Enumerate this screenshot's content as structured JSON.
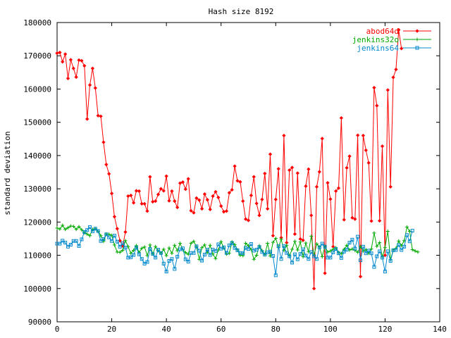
{
  "chart_data": {
    "type": "line",
    "title": "Hash size 8192",
    "xlabel": "",
    "ylabel": "standard deviation",
    "xlim": [
      0,
      140
    ],
    "ylim": [
      90000,
      180000
    ],
    "x_ticks": [
      "0",
      "20",
      "40",
      "60",
      "80",
      "100",
      "120",
      "140"
    ],
    "y_ticks": [
      "90000",
      "100000",
      "110000",
      "120000",
      "130000",
      "140000",
      "150000",
      "160000",
      "170000",
      "180000"
    ],
    "x_tick_values": [
      0,
      20,
      40,
      60,
      80,
      100,
      120,
      140
    ],
    "y_tick_values": [
      90000,
      100000,
      110000,
      120000,
      130000,
      140000,
      150000,
      160000,
      170000,
      180000
    ],
    "grid": false,
    "legend_position": "top-right",
    "series": [
      {
        "name": "abod64d",
        "color": "#ff0000",
        "marker": "diamond",
        "values": [
          170800,
          171000,
          168200,
          170500,
          163200,
          168800,
          166200,
          163600,
          168700,
          168500,
          167000,
          151000,
          161200,
          166200,
          160300,
          152000,
          151800,
          144000,
          137300,
          134500,
          128600,
          121600,
          118000,
          114400,
          112800,
          117000,
          127800,
          128000,
          125800,
          129400,
          129300,
          125500,
          125500,
          123300,
          133600,
          126100,
          126300,
          128300,
          130000,
          129400,
          133800,
          126400,
          129300,
          126300,
          124400,
          131700,
          132000,
          129900,
          133000,
          123400,
          122800,
          127200,
          126600,
          124000,
          128400,
          126700,
          123800,
          127800,
          129100,
          127400,
          124800,
          123100,
          123300,
          128800,
          129700,
          136800,
          132400,
          132100,
          126300,
          120900,
          120500,
          128000,
          133600,
          125600,
          122000,
          126800,
          134600,
          124000,
          140400,
          115900,
          126800,
          136000,
          115300,
          146000,
          113800,
          135600,
          136400,
          116400,
          134700,
          114900,
          114500,
          130800,
          135900,
          122000,
          100000,
          130600,
          135100,
          145100,
          104600,
          131800,
          126900,
          112600,
          129300,
          130200,
          151300,
          120700,
          136300,
          139800,
          121300,
          120900,
          146100,
          103600,
          146000,
          141600,
          137800,
          120300,
          160400,
          155000,
          120400,
          142800,
          110000,
          159700,
          130600,
          163500,
          165900,
          177800,
          172200
        ],
        "x_start": 0
      },
      {
        "name": "jenkins32o",
        "color": "#00aa00",
        "marker": "plus",
        "values": [
          118200,
          117900,
          119000,
          117800,
          118300,
          118800,
          118700,
          117800,
          118600,
          117700,
          116800,
          116400,
          115900,
          117800,
          118000,
          117200,
          115900,
          114200,
          116400,
          116300,
          116000,
          113100,
          111000,
          110900,
          111500,
          114400,
          112600,
          110600,
          111500,
          112900,
          110800,
          112100,
          112500,
          109900,
          113100,
          110400,
          112600,
          111400,
          110600,
          111800,
          109900,
          112200,
          110600,
          113000,
          111400,
          113600,
          111700,
          110800,
          110300,
          113600,
          114200,
          112600,
          108800,
          112300,
          113100,
          110800,
          113000,
          110400,
          109000,
          111600,
          114100,
          112200,
          110400,
          110600,
          114000,
          113200,
          111600,
          110000,
          109900,
          113600,
          112900,
          111800,
          108800,
          110000,
          112900,
          111400,
          110200,
          113600,
          109800,
          113900,
          115100,
          112300,
          114800,
          111500,
          113000,
          109800,
          111800,
          114200,
          111600,
          114000,
          109600,
          113700,
          111100,
          115700,
          110000,
          113400,
          112500,
          109600,
          112700,
          111000,
          111300,
          111800,
          112300,
          110800,
          110500,
          111800,
          113000,
          111600,
          111900,
          111500,
          110900,
          112600,
          111300,
          111700,
          110600,
          111900,
          116700,
          112700,
          113800,
          109500,
          112300,
          117200,
          108700,
          111600,
          112100,
          114300,
          112900,
          114400,
          118500,
          117200,
          111700,
          111300,
          111000
        ],
        "x_start": 0
      },
      {
        "name": "jenkins64",
        "color": "#0088cc",
        "marker": "square",
        "values": [
          113500,
          113500,
          114400,
          113800,
          112600,
          113200,
          114300,
          114300,
          112800,
          114800,
          117000,
          117600,
          118500,
          117200,
          118000,
          117300,
          114300,
          114900,
          116300,
          115400,
          114300,
          115900,
          114100,
          112600,
          113600,
          112300,
          109300,
          109400,
          110100,
          112300,
          110300,
          108900,
          107500,
          108000,
          111900,
          110400,
          109300,
          111700,
          110700,
          107500,
          105100,
          108300,
          108900,
          105900,
          109600,
          111800,
          112100,
          108800,
          108100,
          110700,
          110700,
          112700,
          111400,
          108400,
          110200,
          111700,
          110100,
          111700,
          111300,
          113300,
          112000,
          112400,
          110700,
          113000,
          113700,
          112200,
          111500,
          110700,
          110600,
          112200,
          111900,
          113400,
          111400,
          111700,
          112500,
          111000,
          110200,
          110900,
          111100,
          109800,
          104000,
          112800,
          108900,
          112800,
          110700,
          109700,
          107800,
          110300,
          108800,
          110400,
          111800,
          109900,
          108900,
          111000,
          109700,
          108900,
          112400,
          113500,
          112600,
          109300,
          109300,
          110900,
          111900,
          110600,
          109200,
          111100,
          111700,
          113800,
          114700,
          112000,
          115600,
          108500,
          112600,
          110600,
          111400,
          110600,
          106500,
          109700,
          111200,
          109300,
          105100,
          111200,
          108300,
          111500,
          111600,
          113100,
          111600,
          112600,
          116100,
          114200,
          117400
        ],
        "x_start": 0
      }
    ]
  }
}
